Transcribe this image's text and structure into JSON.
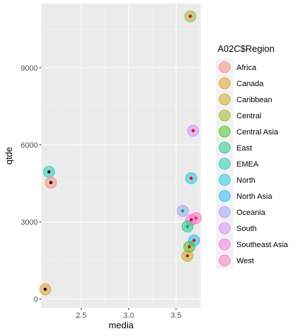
{
  "chart_data": {
    "type": "scatter",
    "xlabel": "media",
    "ylabel": "qtde",
    "xlim": [
      2.08,
      3.76
    ],
    "ylim": [
      -350,
      11500
    ],
    "x_ticks": [
      2.5,
      3.0,
      3.5
    ],
    "x_tick_labels": [
      "2.5",
      "3.0",
      "3.5"
    ],
    "y_ticks": [
      0,
      3000,
      6000,
      9000
    ],
    "y_tick_labels": [
      "0",
      "3000",
      "6000",
      "9000"
    ],
    "grid": true,
    "legend": {
      "title": "A02C$Region",
      "placement": "right",
      "entries": [
        "Africa",
        "Canada",
        "Caribbean",
        "Central",
        "Central Asia",
        "East",
        "EMEA",
        "North",
        "North Asia",
        "Oceania",
        "South",
        "Southeast Asia",
        "West"
      ]
    },
    "colors": {
      "Africa": "#F8766D",
      "Canada": "#E18A00",
      "Caribbean": "#BE9C00",
      "Central": "#8CAB00",
      "Central Asia": "#24B700",
      "East": "#00BE70",
      "EMEA": "#00C1AB",
      "North": "#00BBDA",
      "North Asia": "#00ACFC",
      "Oceania": "#8B93FF",
      "South": "#D575FE",
      "Southeast Asia": "#F962DD",
      "West": "#FF65AC"
    },
    "points": [
      {
        "region": "Central",
        "x": 3.65,
        "y": 11000,
        "dot": "#e00000"
      },
      {
        "region": "South",
        "x": 3.68,
        "y": 6550,
        "dot": "#e00000"
      },
      {
        "region": "EMEA",
        "x": 2.16,
        "y": 4950,
        "dot": "#000000"
      },
      {
        "region": "Africa",
        "x": 2.18,
        "y": 4530,
        "dot": "#000000"
      },
      {
        "region": "North",
        "x": 3.66,
        "y": 4700,
        "dot": "#e00000"
      },
      {
        "region": "Oceania",
        "x": 3.57,
        "y": 3430,
        "dot": "#00b050"
      },
      {
        "region": "West",
        "x": 3.71,
        "y": 3150,
        "dot": "#e00000"
      },
      {
        "region": "Southeast Asia",
        "x": 3.66,
        "y": 3080,
        "dot": "#e00000"
      },
      {
        "region": "East",
        "x": 3.62,
        "y": 2820,
        "dot": "#00b050"
      },
      {
        "region": "North Asia",
        "x": 3.69,
        "y": 2280,
        "dot": "#e00000"
      },
      {
        "region": "Central Asia",
        "x": 3.64,
        "y": 2030,
        "dot": "#e00000"
      },
      {
        "region": "Caribbean",
        "x": 3.62,
        "y": 1680,
        "dot": "#e00000"
      },
      {
        "region": "Canada",
        "x": 2.12,
        "y": 380,
        "dot": "#000000"
      }
    ]
  }
}
